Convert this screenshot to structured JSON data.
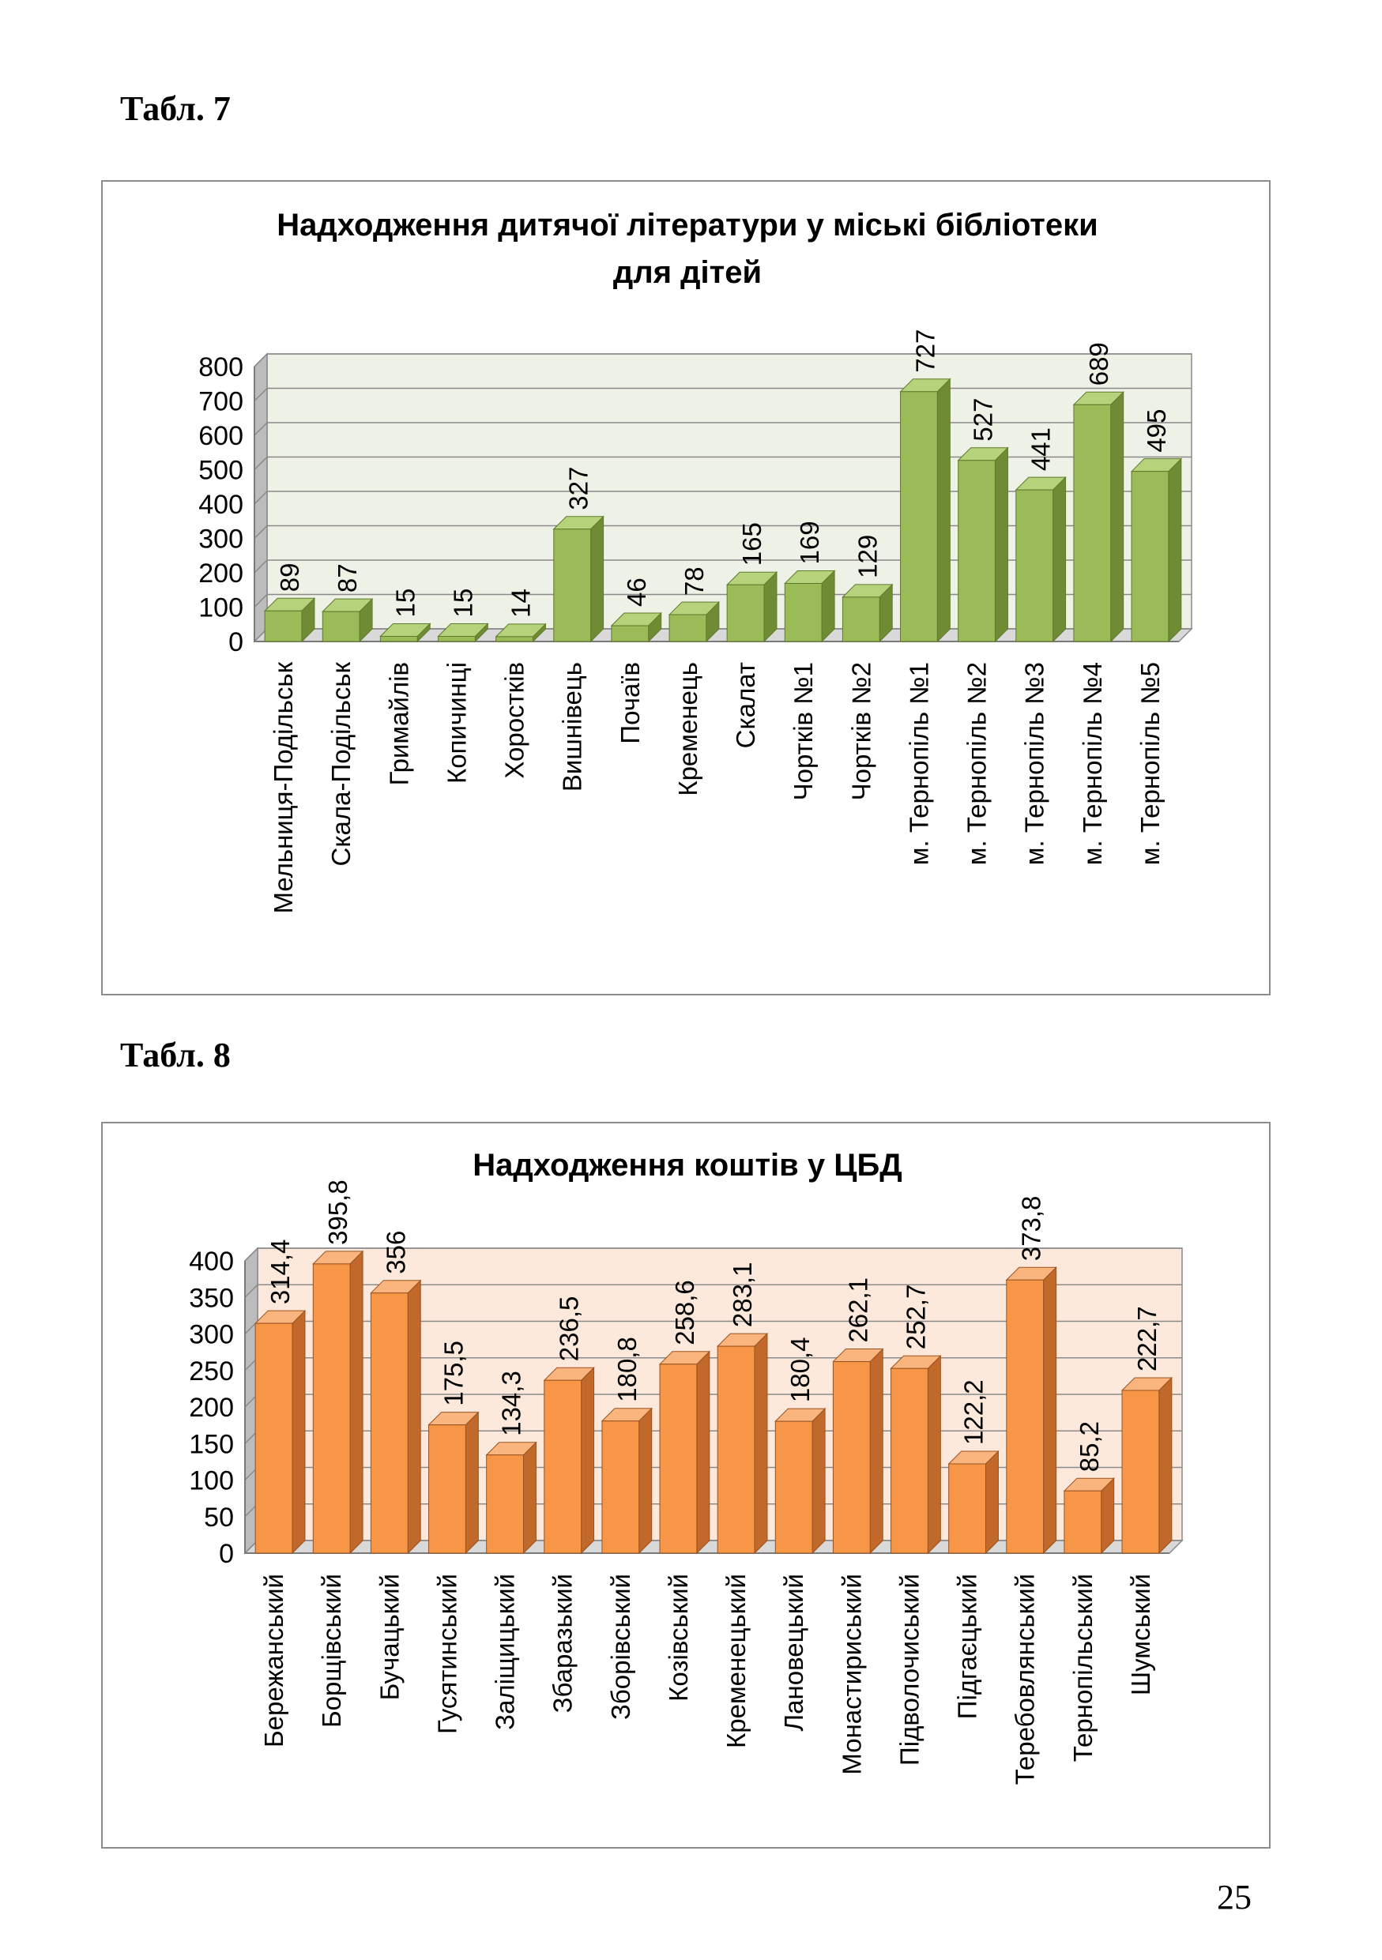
{
  "page": {
    "caption_1": "Табл. 7",
    "caption_2": "Табл. 8",
    "page_number": "25"
  },
  "chart_data": [
    {
      "type": "bar",
      "title_lines": [
        "Надходження дитячої літератури у міські бібліотеки",
        "для дітей"
      ],
      "categories": [
        "Мельниця-Подільськ",
        "Скала-Подільськ",
        "Гримайлів",
        "Копичинці",
        "Хоростків",
        "Вишнівець",
        "Почаїв",
        "Кременець",
        "Скалат",
        "Чортків №1",
        "Чортків №2",
        "м. Тернопіль №1",
        "м. Тернопіль №2",
        "м. Тернопіль №3",
        "м. Тернопіль №4",
        "м. Тернопіль №5"
      ],
      "values": [
        89,
        87,
        15,
        15,
        14,
        327,
        46,
        78,
        165,
        169,
        129,
        727,
        527,
        441,
        689,
        495
      ],
      "value_labels": [
        "89",
        "87",
        "15",
        "15",
        "14",
        "327",
        "46",
        "78",
        "165",
        "169",
        "129",
        "727",
        "527",
        "441",
        "689",
        "495"
      ],
      "ylim": [
        0,
        800
      ],
      "y_ticks": [
        0,
        100,
        200,
        300,
        400,
        500,
        600,
        700,
        800
      ],
      "grid": true,
      "legend": "none",
      "colors": {
        "bar": "#9bbb59",
        "bar_side": "#6f8c35",
        "bar_top": "#b6d27a",
        "bar_stroke": "#5f7a2c",
        "wall": "#eef1e6",
        "grid": "#8a8a8a"
      }
    },
    {
      "type": "bar",
      "title_lines": [
        "Надходження коштів у ЦБД"
      ],
      "categories": [
        "Бережанський",
        "Борщівський",
        "Бучацький",
        "Гусятинський",
        "Заліщицький",
        "Збаразький",
        "Зборівський",
        "Козівський",
        "Кременецький",
        "Лановецький",
        "Монастириський",
        "Підволочиський",
        "Підгаєцький",
        "Теребовлянський",
        "Тернопільський",
        "Шумський"
      ],
      "values": [
        314.4,
        395.8,
        356,
        175.5,
        134.3,
        236.5,
        180.8,
        258.6,
        283.1,
        180.4,
        262.1,
        252.7,
        122.2,
        373.8,
        85.2,
        222.7
      ],
      "value_labels": [
        "314,4",
        "395,8",
        "356",
        "175,5",
        "134,3",
        "236,5",
        "180,8",
        "258,6",
        "283,1",
        "180,4",
        "262,1",
        "252,7",
        "122,2",
        "373,8",
        "85,2",
        "222,7"
      ],
      "ylim": [
        0,
        400
      ],
      "y_ticks": [
        0,
        50,
        100,
        150,
        200,
        250,
        300,
        350,
        400
      ],
      "grid": true,
      "legend": "none",
      "colors": {
        "bar": "#f79646",
        "bar_side": "#c0692a",
        "bar_top": "#fab47e",
        "bar_stroke": "#9a5220",
        "wall": "#fde9dc",
        "grid": "#8a8a8a"
      }
    }
  ]
}
